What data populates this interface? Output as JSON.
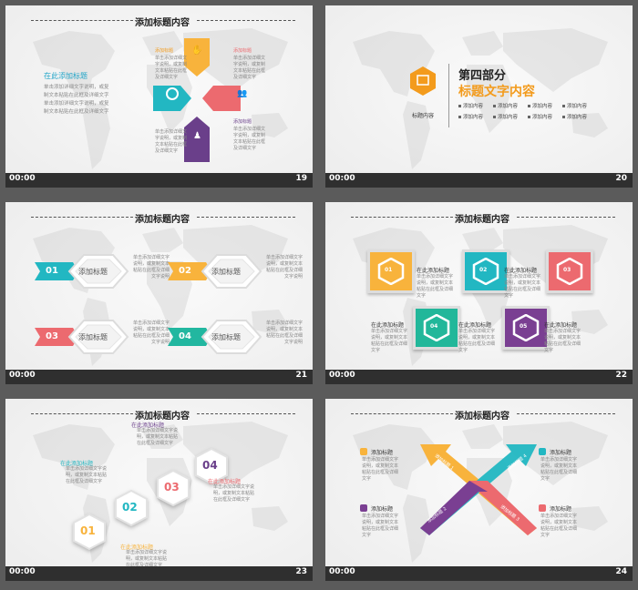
{
  "footer_time": "00:00",
  "slides": [
    {
      "number": "19",
      "title": "添加标题内容",
      "subtitle": "在此添加标题",
      "body": "单击添加详细文字说明，或复制文本粘贴在此框及详细文字单击添加详细文字说明，或复制文本粘贴在此框及详细文字",
      "labels": [
        "添加标题",
        "添加标题",
        "添加标题",
        "添加标题"
      ],
      "texts": [
        "单击添加详细文字说明，或复制文本粘贴在此框及详细文字",
        "单击添加详细文字说明，或复制文本粘贴在此框及详细文字",
        "单击添加详细文字说明，或复制文本粘贴在此框及详细文字",
        "单击添加详细文字说明，或复制文本粘贴在此框及详细文字"
      ],
      "colors": {
        "yellow": "#f8b33c",
        "teal": "#22b7c2",
        "red": "#ec6a6f",
        "purple": "#6a3f8a"
      }
    },
    {
      "number": "20",
      "part": "第四部分",
      "heading": "标题文字内容",
      "icon_label": "标题内容",
      "items": [
        "添加内容",
        "添加内容",
        "添加内容",
        "添加内容",
        "添加内容",
        "添加内容",
        "添加内容",
        "添加内容"
      ],
      "colors": {
        "accent": "#f39b1c"
      }
    },
    {
      "number": "21",
      "title": "添加标题内容",
      "items": [
        {
          "num": "01",
          "label": "添加标题",
          "color": "#22b7c2",
          "text": "单击添加详细文字说明，或复制文本粘贴在此框及详细文字说明"
        },
        {
          "num": "02",
          "label": "添加标题",
          "color": "#f8b33c",
          "text": "单击添加详细文字说明，或复制文本粘贴在此框及详细文字说明"
        },
        {
          "num": "03",
          "label": "添加标题",
          "color": "#ec6a6f",
          "text": "单击添加详细文字说明，或复制文本粘贴在此框及详细文字说明"
        },
        {
          "num": "04",
          "label": "添加标题",
          "color": "#22b7a0",
          "text": "单击添加详细文字说明，或复制文本粘贴在此框及详细文字说明"
        }
      ]
    },
    {
      "number": "22",
      "title": "添加标题内容",
      "boxes": [
        {
          "num": "01",
          "color": "#f8b33c"
        },
        {
          "num": "02",
          "color": "#22b7c2"
        },
        {
          "num": "03",
          "color": "#ec6a6f"
        },
        {
          "num": "04",
          "color": "#22b79a"
        },
        {
          "num": "05",
          "color": "#7a3f92"
        }
      ],
      "labels": [
        "在此添加标题",
        "在此添加标题",
        "在此添加标题",
        "在此添加标题",
        "在此添加标题"
      ],
      "text": "单击添加详细文字说明，或复制文本粘贴在此框及详细文字"
    },
    {
      "number": "23",
      "title": "添加标题内容",
      "items": [
        {
          "num": "01",
          "label": "在此添加标题",
          "color": "#f8b33c"
        },
        {
          "num": "02",
          "label": "在此添加标题",
          "color": "#22b7c2"
        },
        {
          "num": "03",
          "label": "在此添加标题",
          "color": "#ec6a6f"
        },
        {
          "num": "04",
          "label": "在此添加标题",
          "color": "#6a3f8a"
        }
      ],
      "text": "单击添加详细文字说明，或复制文本粘贴在此框及详细文字"
    },
    {
      "number": "24",
      "title": "添加标题内容",
      "items": [
        {
          "label": "添加标题",
          "arrow": "添加标题 1",
          "color": "#f8b33c"
        },
        {
          "label": "添加标题",
          "arrow": "添加标题 2",
          "color": "#7a3f92"
        },
        {
          "label": "添加标题",
          "arrow": "添加标题 3",
          "color": "#ec6a6f"
        },
        {
          "label": "添加标题",
          "arrow": "添加标题 4",
          "color": "#22b7c2"
        }
      ],
      "text": "单击添加详细文字说明，或复制文本粘贴在此框及详细文字"
    }
  ]
}
